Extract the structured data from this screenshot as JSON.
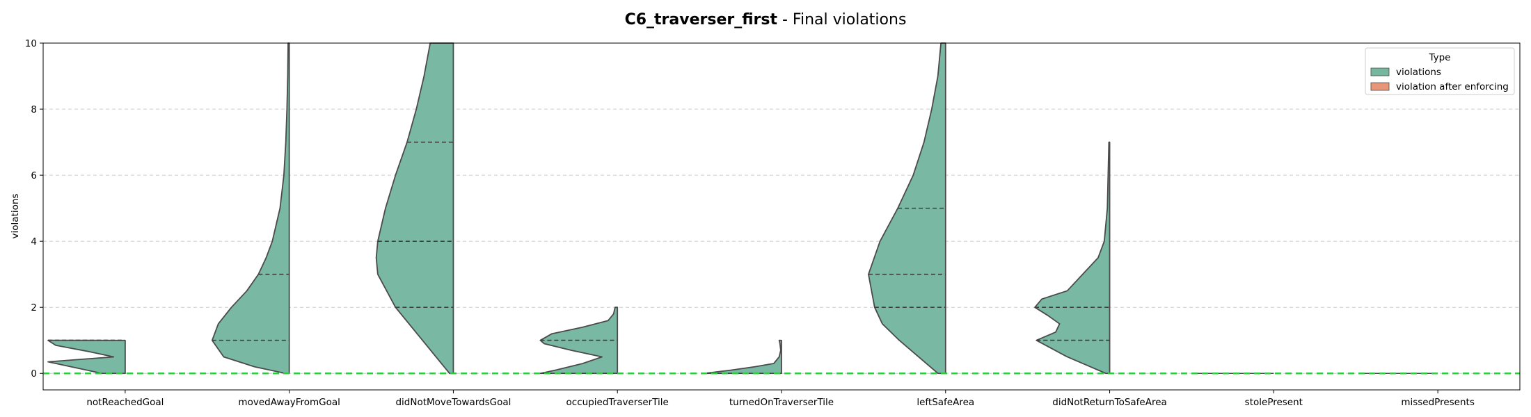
{
  "chart_data": {
    "type": "violin",
    "title_bold": "C6_traverser_first",
    "title_rest": " - Final violations",
    "ylabel": "violations",
    "xlabel": "",
    "ylim": [
      -0.5,
      10
    ],
    "yticks": [
      0,
      2,
      4,
      6,
      8,
      10
    ],
    "grid": "horizontal-dashed",
    "reference_line": {
      "y": 0,
      "color": "#2ecc40",
      "style": "dashed"
    },
    "categories": [
      "notReachedGoal",
      "movedAwayFromGoal",
      "didNotMoveTowardsGoal",
      "occupiedTraverserTile",
      "turnedOnTraverserTile",
      "leftSafeArea",
      "didNotReturnToSafeArea",
      "stolePresent",
      "missedPresents"
    ],
    "legend": {
      "title": "Type",
      "placement": "top-right",
      "entries": [
        {
          "label": "violations",
          "color": "#76b7a0"
        },
        {
          "label": "violation after enforcing",
          "color": "#e8967a"
        }
      ]
    },
    "series": [
      {
        "name": "violations",
        "color": "#76b7a0",
        "side": "left",
        "violins": [
          {
            "ymin": 0,
            "ymax": 1,
            "quartiles": [
              1,
              1,
              1
            ],
            "profile": [
              [
                0,
                0.3
              ],
              [
                0.15,
                0.6
              ],
              [
                0.35,
                1.0
              ],
              [
                0.5,
                0.15
              ],
              [
                0.65,
                0.45
              ],
              [
                0.85,
                0.9
              ],
              [
                1,
                1.0
              ]
            ]
          },
          {
            "ymin": 0,
            "ymax": 10,
            "quartiles": [
              0,
              1,
              3
            ],
            "profile": [
              [
                0,
                0.05
              ],
              [
                0.2,
                0.45
              ],
              [
                0.5,
                0.85
              ],
              [
                1,
                1.0
              ],
              [
                1.5,
                0.92
              ],
              [
                2,
                0.75
              ],
              [
                2.5,
                0.55
              ],
              [
                3,
                0.4
              ],
              [
                3.5,
                0.3
              ],
              [
                4,
                0.22
              ],
              [
                5,
                0.12
              ],
              [
                6,
                0.07
              ],
              [
                7,
                0.045
              ],
              [
                8,
                0.03
              ],
              [
                9,
                0.02
              ],
              [
                10,
                0.015
              ]
            ]
          },
          {
            "ymin": 0,
            "ymax": 10,
            "quartiles": [
              2,
              4,
              7
            ],
            "profile": [
              [
                0,
                0.05
              ],
              [
                1,
                0.4
              ],
              [
                2,
                0.75
              ],
              [
                3,
                0.98
              ],
              [
                3.5,
                1.0
              ],
              [
                4,
                0.98
              ],
              [
                5,
                0.88
              ],
              [
                6,
                0.75
              ],
              [
                7,
                0.6
              ],
              [
                8,
                0.48
              ],
              [
                9,
                0.38
              ],
              [
                10,
                0.3
              ]
            ]
          },
          {
            "ymin": 0,
            "ymax": 2,
            "quartiles": [
              0,
              1,
              1
            ],
            "profile": [
              [
                0,
                1.0
              ],
              [
                0.1,
                0.8
              ],
              [
                0.3,
                0.45
              ],
              [
                0.5,
                0.2
              ],
              [
                0.7,
                0.6
              ],
              [
                0.9,
                0.95
              ],
              [
                1,
                1.0
              ],
              [
                1.2,
                0.85
              ],
              [
                1.4,
                0.45
              ],
              [
                1.6,
                0.12
              ],
              [
                1.8,
                0.05
              ],
              [
                2,
                0.03
              ]
            ]
          },
          {
            "ymin": 0,
            "ymax": 1,
            "quartiles": [
              0,
              0,
              0
            ],
            "profile": [
              [
                0,
                1.0
              ],
              [
                0.1,
                0.65
              ],
              [
                0.2,
                0.35
              ],
              [
                0.3,
                0.1
              ],
              [
                0.5,
                0.03
              ],
              [
                0.7,
                0.01
              ],
              [
                0.9,
                0.02
              ],
              [
                1,
                0.03
              ]
            ]
          },
          {
            "ymin": 0,
            "ymax": 10,
            "quartiles": [
              2,
              3,
              5
            ],
            "profile": [
              [
                0,
                0.1
              ],
              [
                0.5,
                0.35
              ],
              [
                1,
                0.6
              ],
              [
                1.5,
                0.82
              ],
              [
                2,
                0.92
              ],
              [
                3,
                1.0
              ],
              [
                4,
                0.85
              ],
              [
                5,
                0.62
              ],
              [
                6,
                0.42
              ],
              [
                7,
                0.28
              ],
              [
                8,
                0.18
              ],
              [
                9,
                0.1
              ],
              [
                10,
                0.06
              ]
            ]
          },
          {
            "ymin": 0,
            "ymax": 7,
            "quartiles": [
              1,
              1,
              2
            ],
            "profile": [
              [
                0,
                0.05
              ],
              [
                0.25,
                0.3
              ],
              [
                0.5,
                0.55
              ],
              [
                0.75,
                0.75
              ],
              [
                1,
                0.95
              ],
              [
                1.25,
                0.7
              ],
              [
                1.5,
                0.65
              ],
              [
                1.75,
                0.8
              ],
              [
                2,
                0.97
              ],
              [
                2.25,
                0.88
              ],
              [
                2.5,
                0.55
              ],
              [
                3,
                0.35
              ],
              [
                3.5,
                0.15
              ],
              [
                4,
                0.07
              ],
              [
                5,
                0.03
              ],
              [
                6,
                0.02
              ],
              [
                7,
                0.01
              ]
            ]
          },
          {
            "ymin": 0,
            "ymax": 0,
            "quartiles": [
              0,
              0,
              0
            ],
            "profile": [
              [
                0,
                1.0
              ]
            ]
          },
          {
            "ymin": 0,
            "ymax": 0,
            "quartiles": [
              0,
              0,
              0
            ],
            "profile": [
              [
                0,
                1.0
              ]
            ]
          }
        ]
      }
    ]
  }
}
